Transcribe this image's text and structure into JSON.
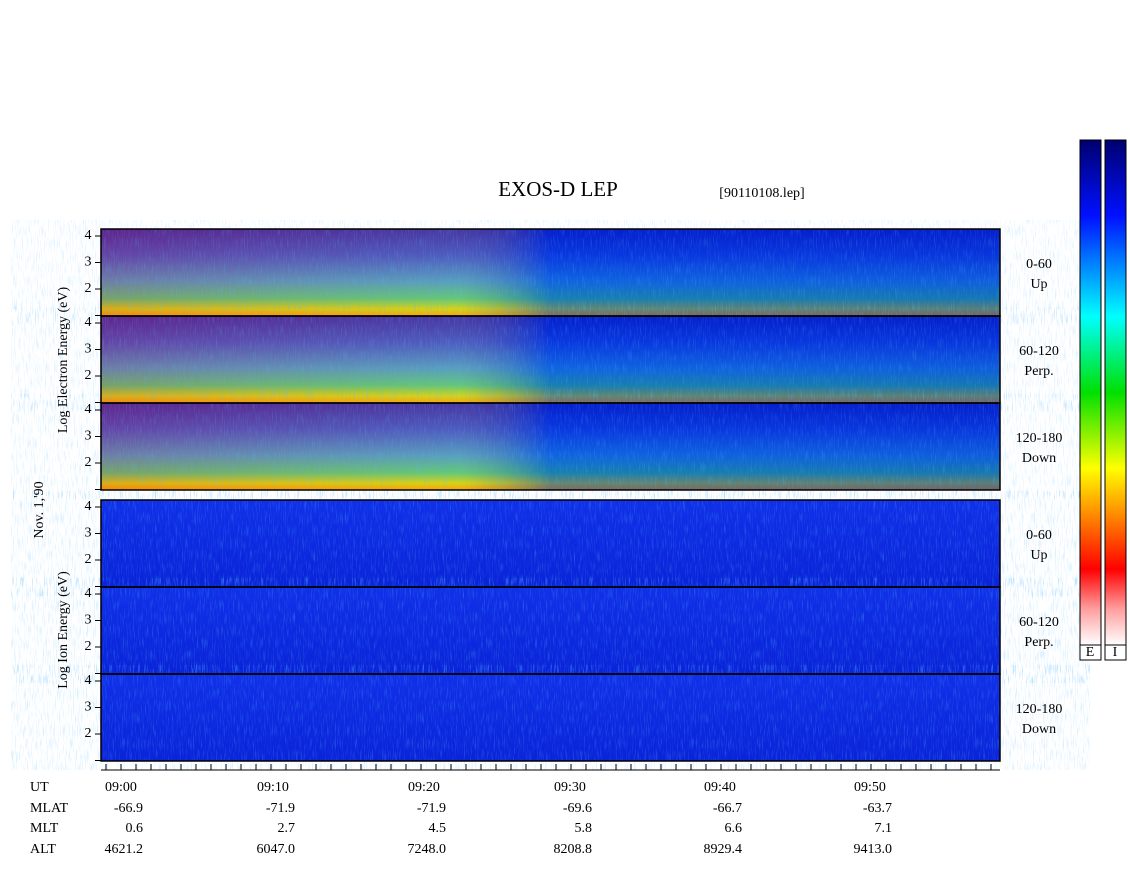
{
  "title": "EXOS-D LEP",
  "file": "[90110108.lep]",
  "date": "Nov. 1,'90",
  "electron_axis_label": "Log Electron Energy (eV)",
  "ion_axis_label": "Log Ion Energy (eV)",
  "panels": [
    {
      "angle": "0-60",
      "direction": "Up",
      "yticks": [
        4,
        3,
        2
      ]
    },
    {
      "angle": "60-120",
      "direction": "Perp.",
      "yticks": [
        4,
        3,
        2
      ]
    },
    {
      "angle": "120-180",
      "direction": "Down",
      "yticks": [
        4,
        3,
        2
      ]
    },
    {
      "angle": "0-60",
      "direction": "Up",
      "yticks": [
        4,
        3,
        2
      ]
    },
    {
      "angle": "60-120",
      "direction": "Perp.",
      "yticks": [
        4,
        3,
        2
      ]
    },
    {
      "angle": "120-180",
      "direction": "Down",
      "yticks": [
        4,
        3,
        2
      ]
    }
  ],
  "time_axis": {
    "rows": [
      {
        "label": "UT",
        "values": [
          "09:00",
          "09:10",
          "09:20",
          "09:30",
          "09:40",
          "09:50"
        ]
      },
      {
        "label": "MLAT",
        "values": [
          "-66.9",
          "-71.9",
          "-71.9",
          "-69.6",
          "-66.7",
          "-63.7"
        ]
      },
      {
        "label": "MLT",
        "values": [
          "0.6",
          "2.7",
          "4.5",
          "5.8",
          "6.6",
          "7.1"
        ]
      },
      {
        "label": "ALT",
        "values": [
          "4621.2",
          "6047.0",
          "7248.0",
          "8208.8",
          "8929.4",
          "9413.0"
        ]
      }
    ]
  },
  "colorbar_labels": [
    "E",
    "I"
  ]
}
